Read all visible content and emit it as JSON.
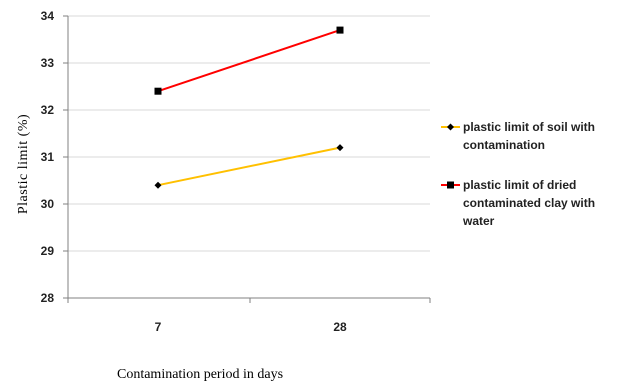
{
  "chart_data": {
    "type": "line",
    "title": "",
    "xlabel": "Contamination period  in days",
    "ylabel": "Plastic limit (%)",
    "categories": [
      "7",
      "28"
    ],
    "ylim": [
      28,
      34
    ],
    "yticks": [
      "28",
      "29",
      "30",
      "31",
      "32",
      "33",
      "34"
    ],
    "grid": true,
    "legend_position": "right",
    "series": [
      {
        "name": "plastic limit of soil with contamination",
        "name_lines": [
          "plastic limit of soil with",
          "contamination"
        ],
        "values": [
          30.4,
          31.2
        ],
        "color": "#ffc000",
        "marker": "diamond"
      },
      {
        "name": "plastic limit of dried contaminated clay with water",
        "name_lines": [
          "plastic limit of dried",
          "contaminated clay with",
          "water"
        ],
        "values": [
          32.4,
          33.7
        ],
        "color": "#ff0000",
        "marker": "square"
      }
    ]
  }
}
